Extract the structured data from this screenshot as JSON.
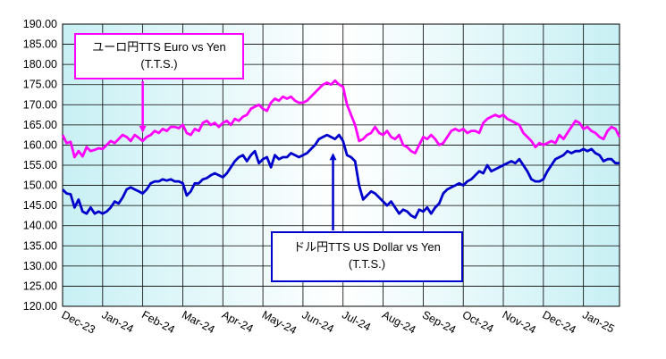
{
  "chart_data": {
    "type": "line",
    "ylim": [
      120,
      190
    ],
    "y_ticks": [
      "120.00",
      "125.00",
      "130.00",
      "135.00",
      "140.00",
      "145.00",
      "150.00",
      "155.00",
      "160.00",
      "165.00",
      "170.00",
      "175.00",
      "180.00",
      "185.00",
      "190.00"
    ],
    "x_ticks": [
      "Dec-23",
      "Jan-24",
      "Feb-24",
      "Mar-24",
      "Apr-24",
      "May-24",
      "Jun-24",
      "Jul-24",
      "Aug-24",
      "Sep-24",
      "Oct-24",
      "Nov-24",
      "Dec-24",
      "Jan-25"
    ],
    "grid": true,
    "series": [
      {
        "name": "ユーロ円TTS Euro vs Yen",
        "label_line2": "(T.T.S.)",
        "color": "#ff00ff",
        "x": [
          0,
          0.1,
          0.2,
          0.3,
          0.4,
          0.5,
          0.6,
          0.7,
          0.8,
          0.9,
          1.0,
          1.1,
          1.2,
          1.3,
          1.4,
          1.5,
          1.6,
          1.7,
          1.8,
          1.9,
          2.0,
          2.1,
          2.2,
          2.3,
          2.4,
          2.5,
          2.6,
          2.7,
          2.8,
          2.9,
          3.0,
          3.1,
          3.2,
          3.3,
          3.4,
          3.5,
          3.6,
          3.7,
          3.8,
          3.9,
          4.0,
          4.1,
          4.2,
          4.3,
          4.4,
          4.5,
          4.6,
          4.7,
          4.8,
          4.9,
          5.0,
          5.1,
          5.2,
          5.3,
          5.4,
          5.5,
          5.6,
          5.7,
          5.8,
          5.9,
          6.0,
          6.1,
          6.2,
          6.3,
          6.4,
          6.5,
          6.6,
          6.7,
          6.8,
          6.9,
          7.0,
          7.1,
          7.2,
          7.3,
          7.4,
          7.5,
          7.6,
          7.7,
          7.8,
          7.9,
          8.0,
          8.1,
          8.2,
          8.3,
          8.4,
          8.5,
          8.6,
          8.7,
          8.8,
          8.9,
          9.0,
          9.1,
          9.2,
          9.3,
          9.4,
          9.5,
          9.6,
          9.7,
          9.8,
          9.9,
          10.0,
          10.1,
          10.2,
          10.3,
          10.4,
          10.5,
          10.6,
          10.7,
          10.8,
          10.9,
          11.0,
          11.1,
          11.2,
          11.3,
          11.4,
          11.5,
          11.6,
          11.7,
          11.8,
          11.9,
          12.0,
          12.1,
          12.2,
          12.3,
          12.4,
          12.5,
          12.6,
          12.7,
          12.8,
          12.9,
          13.0,
          13.1,
          13.2,
          13.3,
          13.4,
          13.5,
          13.6,
          13.7,
          13.8,
          13.9
        ],
        "values": [
          162.5,
          160.5,
          160.8,
          157.0,
          158.5,
          157.2,
          159.5,
          158.5,
          158.8,
          159.2,
          159.0,
          160.0,
          161.0,
          160.5,
          161.5,
          162.5,
          162.0,
          161.0,
          162.5,
          161.8,
          161.0,
          162.0,
          162.5,
          163.5,
          163.0,
          164.0,
          163.5,
          164.5,
          164.5,
          164.2,
          165.0,
          163.0,
          162.5,
          164.0,
          163.5,
          165.5,
          166.0,
          165.0,
          165.5,
          164.5,
          165.5,
          166.0,
          165.0,
          166.5,
          166.0,
          167.0,
          167.5,
          169.0,
          169.5,
          170.0,
          169.0,
          168.5,
          170.5,
          171.5,
          171.0,
          172.0,
          171.5,
          172.0,
          171.0,
          170.5,
          170.5,
          171.0,
          172.0,
          173.0,
          174.0,
          175.0,
          175.5,
          175.0,
          176.0,
          175.0,
          174.5,
          170.0,
          167.5,
          165.0,
          161.0,
          161.5,
          162.5,
          163.0,
          164.5,
          163.0,
          162.5,
          163.5,
          162.0,
          161.5,
          162.5,
          160.0,
          159.5,
          158.5,
          158.0,
          160.0,
          162.0,
          161.5,
          162.5,
          161.5,
          160.0,
          160.5,
          162.0,
          163.5,
          164.0,
          163.5,
          164.0,
          163.0,
          163.5,
          163.5,
          163.0,
          165.5,
          166.5,
          167.0,
          167.5,
          167.0,
          167.5,
          166.5,
          166.0,
          165.5,
          165.0,
          163.0,
          162.0,
          161.0,
          159.5,
          160.5,
          160.0,
          160.5,
          161.0,
          160.5,
          162.5,
          161.5,
          163.0,
          164.5,
          166.0,
          165.5,
          164.0,
          164.5,
          163.5,
          163.0,
          162.0,
          161.5,
          163.5,
          164.5,
          164.0,
          162.0
        ],
        "callout_point": {
          "x": 2.0,
          "y": 163.0
        }
      },
      {
        "name": "ドル円TTS  US Dollar vs Yen",
        "label_line2": "(T.T.S.)",
        "color": "#0000cc",
        "x": [
          0,
          0.1,
          0.2,
          0.3,
          0.4,
          0.5,
          0.6,
          0.7,
          0.8,
          0.9,
          1.0,
          1.1,
          1.2,
          1.3,
          1.4,
          1.5,
          1.6,
          1.7,
          1.8,
          1.9,
          2.0,
          2.1,
          2.2,
          2.3,
          2.4,
          2.5,
          2.6,
          2.7,
          2.8,
          2.9,
          3.0,
          3.1,
          3.2,
          3.3,
          3.4,
          3.5,
          3.6,
          3.7,
          3.8,
          3.9,
          4.0,
          4.1,
          4.2,
          4.3,
          4.4,
          4.5,
          4.6,
          4.7,
          4.8,
          4.9,
          5.0,
          5.1,
          5.2,
          5.3,
          5.4,
          5.5,
          5.6,
          5.7,
          5.8,
          5.9,
          6.0,
          6.1,
          6.2,
          6.3,
          6.4,
          6.5,
          6.6,
          6.7,
          6.8,
          6.9,
          7.0,
          7.1,
          7.2,
          7.3,
          7.4,
          7.5,
          7.6,
          7.7,
          7.8,
          7.9,
          8.0,
          8.1,
          8.2,
          8.3,
          8.4,
          8.5,
          8.6,
          8.7,
          8.8,
          8.9,
          9.0,
          9.1,
          9.2,
          9.3,
          9.4,
          9.5,
          9.6,
          9.7,
          9.8,
          9.9,
          10.0,
          10.1,
          10.2,
          10.3,
          10.4,
          10.5,
          10.6,
          10.7,
          10.8,
          10.9,
          11.0,
          11.1,
          11.2,
          11.3,
          11.4,
          11.5,
          11.6,
          11.7,
          11.8,
          11.9,
          12.0,
          12.1,
          12.2,
          12.3,
          12.4,
          12.5,
          12.6,
          12.7,
          12.8,
          12.9,
          13.0,
          13.1,
          13.2,
          13.3,
          13.4,
          13.5,
          13.6,
          13.7,
          13.8,
          13.9
        ],
        "values": [
          149.0,
          148.0,
          147.8,
          144.5,
          146.5,
          143.5,
          143.0,
          144.5,
          143.0,
          143.5,
          143.0,
          143.5,
          144.5,
          146.0,
          145.5,
          147.0,
          149.0,
          149.5,
          149.0,
          148.5,
          148.0,
          149.0,
          150.5,
          151.0,
          151.0,
          151.5,
          151.2,
          151.5,
          151.0,
          151.0,
          150.5,
          147.5,
          148.5,
          150.5,
          150.5,
          151.5,
          151.8,
          152.5,
          153.0,
          152.5,
          152.0,
          153.0,
          154.5,
          156.0,
          157.0,
          157.5,
          156.0,
          157.5,
          158.5,
          155.5,
          156.5,
          157.0,
          154.5,
          157.5,
          156.5,
          157.0,
          157.0,
          158.0,
          157.5,
          157.0,
          157.5,
          158.0,
          159.0,
          160.0,
          161.5,
          162.0,
          162.5,
          162.0,
          161.5,
          162.5,
          161.0,
          157.5,
          157.0,
          156.0,
          150.0,
          146.5,
          147.5,
          148.5,
          148.0,
          147.0,
          146.0,
          145.0,
          146.0,
          144.5,
          143.0,
          144.0,
          143.5,
          142.5,
          142.0,
          144.0,
          143.5,
          144.5,
          143.0,
          144.5,
          145.5,
          148.0,
          149.0,
          149.5,
          150.0,
          150.5,
          150.0,
          151.0,
          151.5,
          152.5,
          153.5,
          153.0,
          155.0,
          153.5,
          154.0,
          154.5,
          155.0,
          155.5,
          156.0,
          155.5,
          156.5,
          155.0,
          153.5,
          151.5,
          151.0,
          151.0,
          151.5,
          153.5,
          155.0,
          156.5,
          157.0,
          157.5,
          158.5,
          158.0,
          158.5,
          158.5,
          159.0,
          158.5,
          159.0,
          158.0,
          157.5,
          156.0,
          156.5,
          156.5,
          155.5,
          155.5
        ],
        "callout_point": {
          "x": 6.75,
          "y": 158.5
        }
      }
    ]
  },
  "callouts": {
    "eur_line1": "ユーロ円TTS  Euro vs Yen",
    "eur_line2": "(T.T.S.)",
    "usd_line1": "ドル円TTS   US Dollar vs Yen",
    "usd_line2": "(T.T.S.)"
  },
  "colors": {
    "plot_bg_edge": "#c8f0f4",
    "plot_bg_center": "#ffffff",
    "eur": "#ff00ff",
    "usd": "#0000cc",
    "grid": "#000000"
  }
}
